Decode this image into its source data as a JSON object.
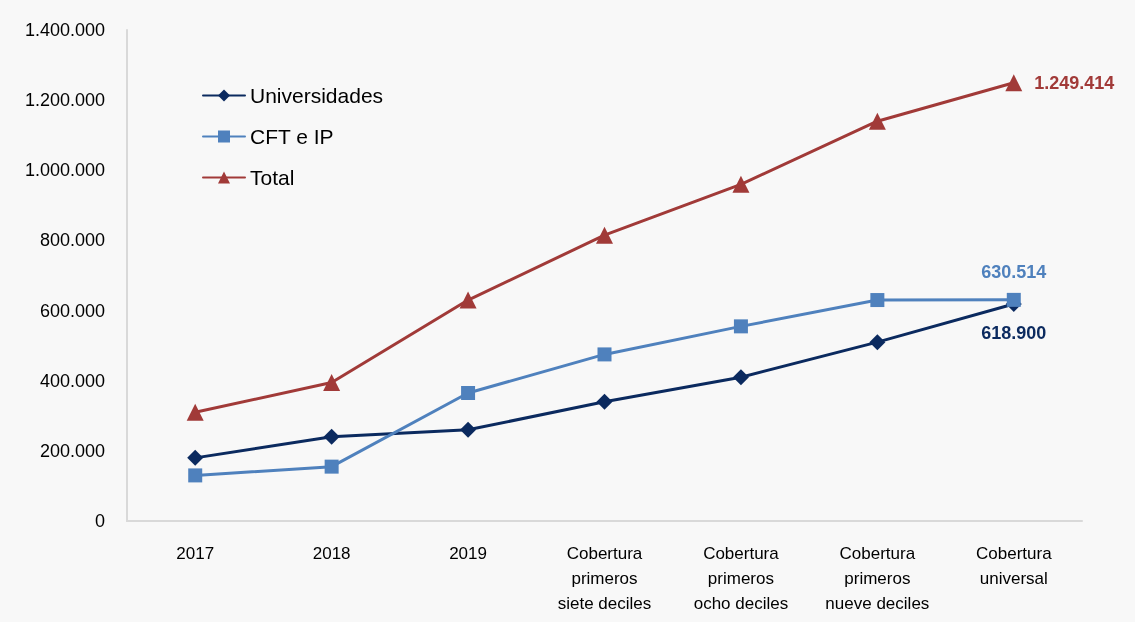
{
  "chart_data": {
    "type": "line",
    "categories": [
      "2017",
      "2018",
      "2019",
      "Cobertura primeros siete deciles",
      "Cobertura primeros ocho deciles",
      "Cobertura primeros nueve deciles",
      "Cobertura universal"
    ],
    "series": [
      {
        "name": "Universidades",
        "color": "#0b2a5f",
        "marker": "diamond",
        "values": [
          180000,
          240000,
          260000,
          340000,
          410000,
          510000,
          618900
        ],
        "value_labels": [
          null,
          null,
          null,
          null,
          null,
          null,
          "618.900"
        ]
      },
      {
        "name": "CFT e IP",
        "color": "#4f81bd",
        "marker": "square",
        "values": [
          130000,
          155000,
          365000,
          475000,
          555000,
          630000,
          630514
        ],
        "value_labels": [
          null,
          null,
          null,
          null,
          null,
          null,
          "630.514"
        ]
      },
      {
        "name": "Total",
        "color": "#a13a38",
        "marker": "triangle",
        "values": [
          310000,
          395000,
          630000,
          815000,
          960000,
          1140000,
          1249414
        ],
        "value_labels": [
          null,
          null,
          null,
          null,
          null,
          null,
          "1.249.414"
        ]
      }
    ],
    "ylim": [
      0,
      1400000
    ],
    "yticks": [
      0,
      {
        "value": 200000,
        "label": "200.000"
      },
      {
        "value": 400000,
        "label": "400.000"
      },
      {
        "value": 600000,
        "label": "600.000"
      },
      {
        "value": 800000,
        "label": "800.000"
      },
      {
        "value": 1000000,
        "label": "1.000.000"
      },
      {
        "value": 1200000,
        "label": "1.200.000"
      },
      {
        "value": 1400000,
        "label": "1.400.000"
      }
    ],
    "grid": false,
    "legend": "top left",
    "line_style": "solid"
  }
}
